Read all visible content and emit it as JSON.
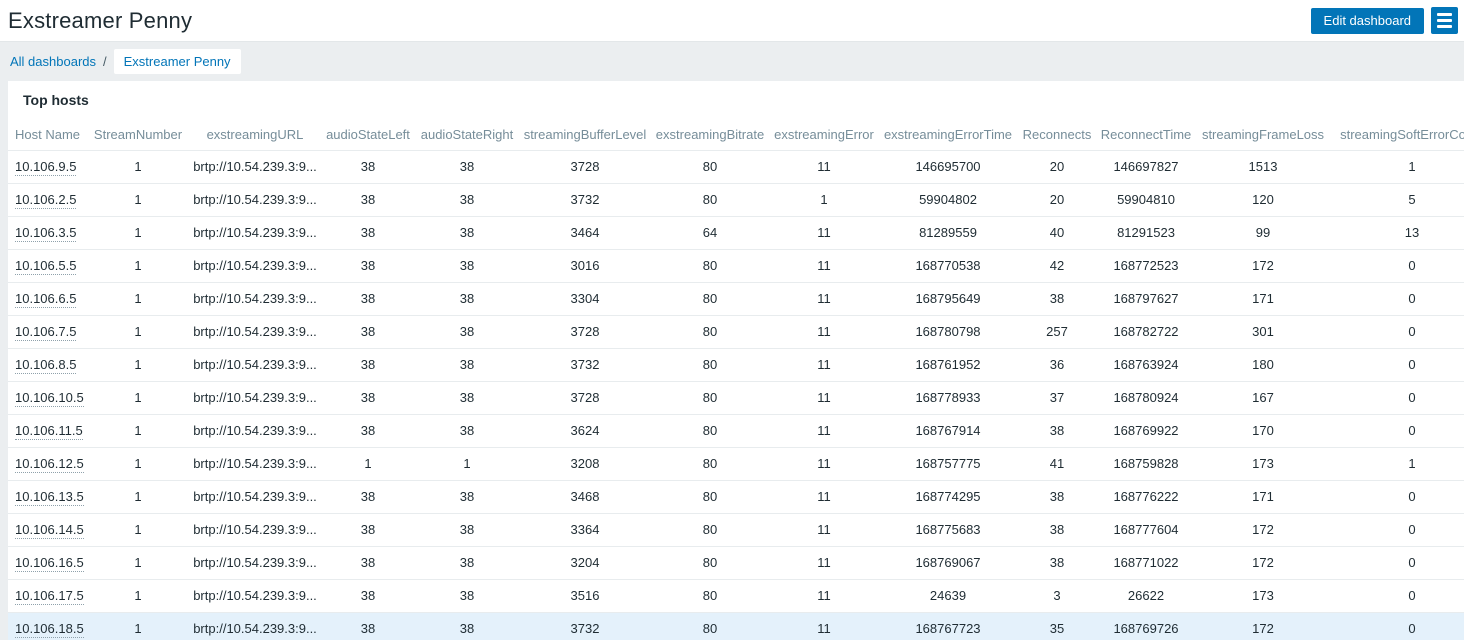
{
  "header": {
    "title": "Exstreamer Penny",
    "edit_button_label": "Edit dashboard"
  },
  "breadcrumb": {
    "all_dashboards_label": "All dashboards",
    "separator": "/",
    "current_label": "Exstreamer Penny"
  },
  "widget": {
    "title": "Top hosts"
  },
  "table": {
    "columns": [
      "Host Name",
      "StreamNumber",
      "exstreamingURL",
      "audioStateLeft",
      "audioStateRight",
      "streamingBufferLevel",
      "exstreamingBitrate",
      "exstreamingError",
      "exstreamingErrorTime",
      "Reconnects",
      "ReconnectTime",
      "streamingFrameLoss",
      "streamingSoftErrorCount"
    ],
    "rows": [
      [
        "10.106.9.5",
        "1",
        "brtp://10.54.239.3:9...",
        "38",
        "38",
        "3728",
        "80",
        "11",
        "146695700",
        "20",
        "146697827",
        "1513",
        "1"
      ],
      [
        "10.106.2.5",
        "1",
        "brtp://10.54.239.3:9...",
        "38",
        "38",
        "3732",
        "80",
        "1",
        "59904802",
        "20",
        "59904810",
        "120",
        "5"
      ],
      [
        "10.106.3.5",
        "1",
        "brtp://10.54.239.3:9...",
        "38",
        "38",
        "3464",
        "64",
        "11",
        "81289559",
        "40",
        "81291523",
        "99",
        "13"
      ],
      [
        "10.106.5.5",
        "1",
        "brtp://10.54.239.3:9...",
        "38",
        "38",
        "3016",
        "80",
        "11",
        "168770538",
        "42",
        "168772523",
        "172",
        "0"
      ],
      [
        "10.106.6.5",
        "1",
        "brtp://10.54.239.3:9...",
        "38",
        "38",
        "3304",
        "80",
        "11",
        "168795649",
        "38",
        "168797627",
        "171",
        "0"
      ],
      [
        "10.106.7.5",
        "1",
        "brtp://10.54.239.3:9...",
        "38",
        "38",
        "3728",
        "80",
        "11",
        "168780798",
        "257",
        "168782722",
        "301",
        "0"
      ],
      [
        "10.106.8.5",
        "1",
        "brtp://10.54.239.3:9...",
        "38",
        "38",
        "3732",
        "80",
        "11",
        "168761952",
        "36",
        "168763924",
        "180",
        "0"
      ],
      [
        "10.106.10.5",
        "1",
        "brtp://10.54.239.3:9...",
        "38",
        "38",
        "3728",
        "80",
        "11",
        "168778933",
        "37",
        "168780924",
        "167",
        "0"
      ],
      [
        "10.106.11.5",
        "1",
        "brtp://10.54.239.3:9...",
        "38",
        "38",
        "3624",
        "80",
        "11",
        "168767914",
        "38",
        "168769922",
        "170",
        "0"
      ],
      [
        "10.106.12.5",
        "1",
        "brtp://10.54.239.3:9...",
        "1",
        "1",
        "3208",
        "80",
        "11",
        "168757775",
        "41",
        "168759828",
        "173",
        "1"
      ],
      [
        "10.106.13.5",
        "1",
        "brtp://10.54.239.3:9...",
        "38",
        "38",
        "3468",
        "80",
        "11",
        "168774295",
        "38",
        "168776222",
        "171",
        "0"
      ],
      [
        "10.106.14.5",
        "1",
        "brtp://10.54.239.3:9...",
        "38",
        "38",
        "3364",
        "80",
        "11",
        "168775683",
        "38",
        "168777604",
        "172",
        "0"
      ],
      [
        "10.106.16.5",
        "1",
        "brtp://10.54.239.3:9...",
        "38",
        "38",
        "3204",
        "80",
        "11",
        "168769067",
        "38",
        "168771022",
        "172",
        "0"
      ],
      [
        "10.106.17.5",
        "1",
        "brtp://10.54.239.3:9...",
        "38",
        "38",
        "3516",
        "80",
        "11",
        "24639",
        "3",
        "26622",
        "173",
        "0"
      ],
      [
        "10.106.18.5",
        "1",
        "brtp://10.54.239.3:9...",
        "38",
        "38",
        "3732",
        "80",
        "11",
        "168767723",
        "35",
        "168769726",
        "172",
        "0"
      ]
    ],
    "highlighted_row_index": 14
  },
  "colors": {
    "accent_blue": "#0275b8",
    "page_background": "#ebeef0",
    "column_header_text": "#768d99",
    "body_text": "#1f2c33",
    "row_highlight": "#e4f1fb"
  }
}
